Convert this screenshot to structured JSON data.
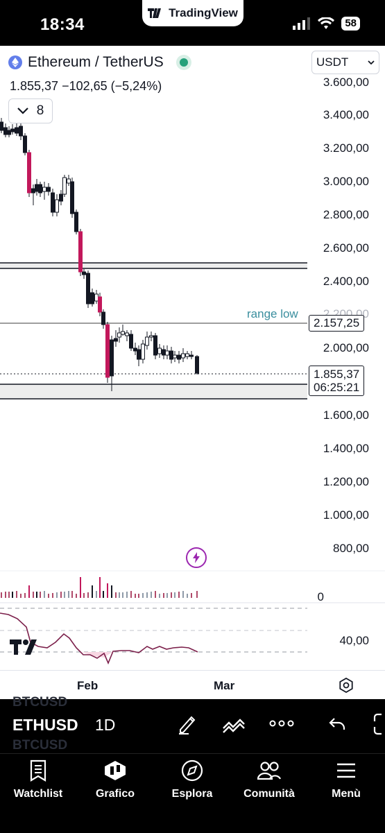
{
  "status": {
    "time": "18:34",
    "battery": "58",
    "pill_label": "TradingView"
  },
  "symbol": {
    "name": "Ethereum / TetherUS",
    "last_price": "1.855,37",
    "change": "−102,65 (−5,24%)",
    "indicator_count": "8",
    "currency": "USDT"
  },
  "price_axis": [
    "3.600,00",
    "3.400,00",
    "3.200,00",
    "3.000,00",
    "2.800,00",
    "2.600,00",
    "2.400,00",
    "2.200,00",
    "2.000,00",
    "1.600,00",
    "1.400,00",
    "1.200,00",
    "1.000,00",
    "800,00",
    "0",
    "40,00"
  ],
  "annotations": {
    "range_low_label": "range low",
    "range_low_price": "2.157,25",
    "current_price": "1.855,37",
    "countdown": "06:25:21"
  },
  "time_axis": {
    "labels": [
      "Feb",
      "Mar"
    ]
  },
  "toolbar": {
    "ticker": "ETHUSD",
    "ghost_ticker": "BTCUSD",
    "interval": "1D"
  },
  "tabs": [
    {
      "label": "Watchlist",
      "icon": "watchlist-icon"
    },
    {
      "label": "Grafico",
      "icon": "chart-icon"
    },
    {
      "label": "Esplora",
      "icon": "compass-icon"
    },
    {
      "label": "Comunità",
      "icon": "community-icon"
    },
    {
      "label": "Menù",
      "icon": "menu-icon"
    }
  ],
  "colors": {
    "up": "#ffffff",
    "down": "#131722",
    "down_red": "#c2185b",
    "blue_candle": "#8ecae6",
    "orange_candle": "#f4a259",
    "range_text": "#3a8e9e",
    "rsi": "#7b1f4a"
  }
}
